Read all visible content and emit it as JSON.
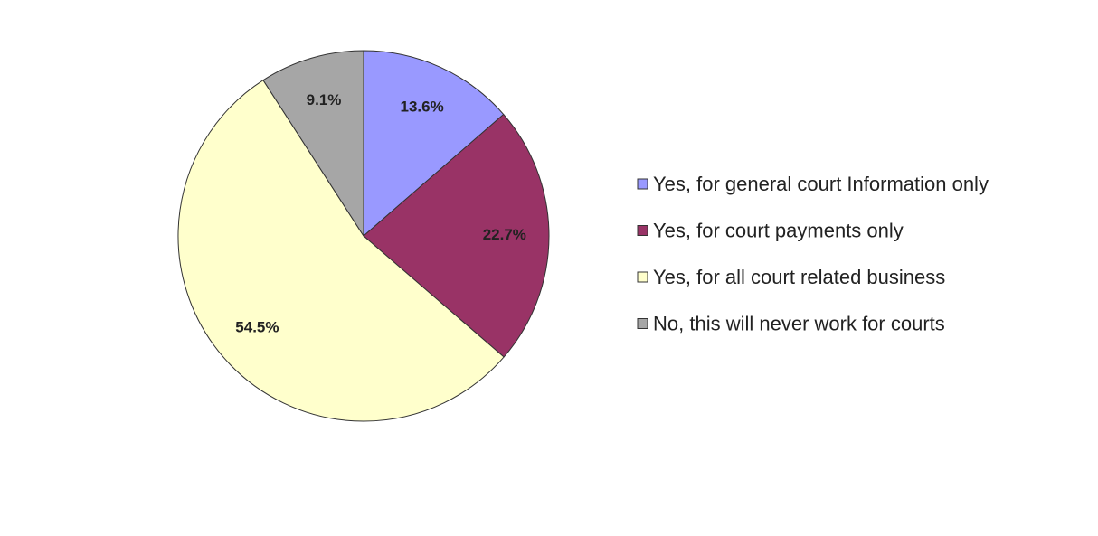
{
  "chart_data": {
    "type": "pie",
    "categories": [
      "Yes, for general court Information only",
      "Yes, for court payments only",
      "Yes, for all court related business",
      "No, this will never work for courts"
    ],
    "values": [
      13.6,
      22.7,
      54.5,
      9.1
    ],
    "value_labels": [
      "13.6%",
      "22.7%",
      "54.5%",
      "9.1%"
    ],
    "colors": [
      "#9999ff",
      "#993366",
      "#ffffcc",
      "#a6a6a6"
    ],
    "legend": "right"
  }
}
